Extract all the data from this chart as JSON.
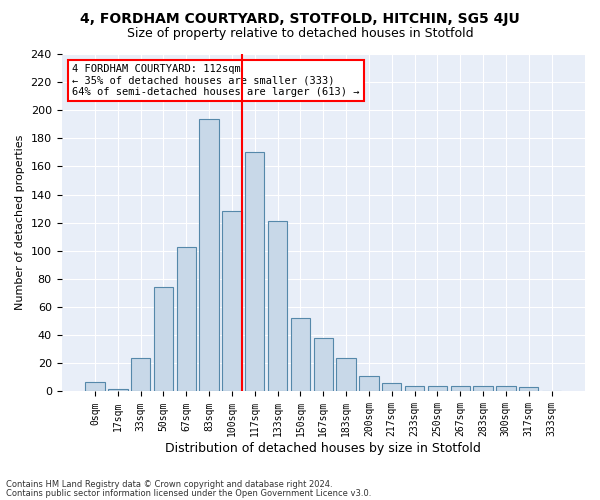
{
  "title": "4, FORDHAM COURTYARD, STOTFOLD, HITCHIN, SG5 4JU",
  "subtitle": "Size of property relative to detached houses in Stotfold",
  "xlabel": "Distribution of detached houses by size in Stotfold",
  "ylabel": "Number of detached properties",
  "bar_color": "#c8d8e8",
  "bar_edge_color": "#5588aa",
  "background_color": "#e8eef8",
  "bins": [
    "0sqm",
    "17sqm",
    "33sqm",
    "50sqm",
    "67sqm",
    "83sqm",
    "100sqm",
    "117sqm",
    "133sqm",
    "150sqm",
    "167sqm",
    "183sqm",
    "200sqm",
    "217sqm",
    "233sqm",
    "250sqm",
    "267sqm",
    "283sqm",
    "300sqm",
    "317sqm",
    "333sqm"
  ],
  "values": [
    7,
    2,
    24,
    74,
    103,
    194,
    128,
    170,
    121,
    52,
    38,
    24,
    11,
    6,
    4,
    4,
    4,
    4,
    4,
    3,
    0
  ],
  "annotation_text": "4 FORDHAM COURTYARD: 112sqm\n← 35% of detached houses are smaller (333)\n64% of semi-detached houses are larger (613) →",
  "annotation_box_color": "white",
  "annotation_box_edge_color": "red",
  "vline_color": "red",
  "ylim": [
    0,
    240
  ],
  "yticks": [
    0,
    20,
    40,
    60,
    80,
    100,
    120,
    140,
    160,
    180,
    200,
    220,
    240
  ],
  "footer1": "Contains HM Land Registry data © Crown copyright and database right 2024.",
  "footer2": "Contains public sector information licensed under the Open Government Licence v3.0."
}
